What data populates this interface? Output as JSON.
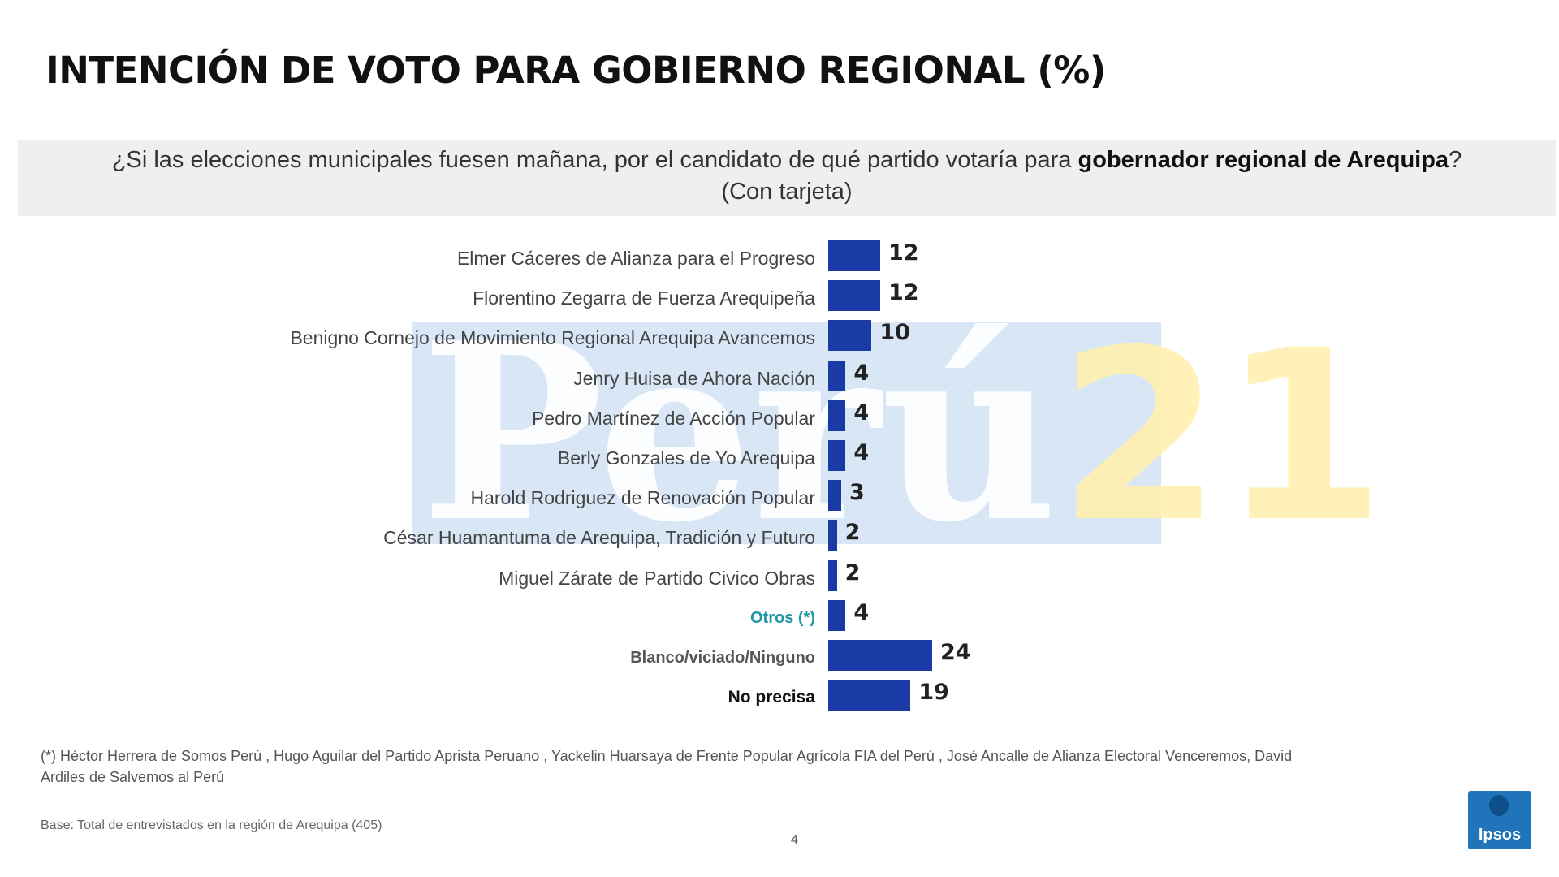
{
  "title": "INTENCIÓN DE VOTO PARA GOBIERNO REGIONAL (%)",
  "question": {
    "pre": "¿Si las elecciones municipales fuesen mañana, por el candidato de qué partido votaría para ",
    "bold": "gobernador regional de Arequipa",
    "post": "?",
    "line2": "(Con tarjeta)"
  },
  "watermark": {
    "text": "Perú",
    "number": "21"
  },
  "chart_data": {
    "type": "bar",
    "orientation": "horizontal",
    "unit": "%",
    "categories": [
      "Elmer Cáceres de Alianza para el Progreso",
      "Florentino Zegarra de Fuerza Arequipeña",
      "Benigno Cornejo de Movimiento Regional Arequipa Avancemos",
      "Jenry Huisa de Ahora Nación",
      "Pedro Martínez de Acción Popular",
      "Berly Gonzales de Yo Arequipa",
      "Harold Rodriguez de Renovación Popular",
      "César Huamantuma de Arequipa, Tradición y Futuro",
      "Miguel Zárate de Partido Civico Obras",
      "Otros (*)",
      "Blanco/viciado/Ninguno",
      "No precisa"
    ],
    "values": [
      12,
      12,
      10,
      4,
      4,
      4,
      3,
      2,
      2,
      4,
      24,
      19
    ],
    "bar_color": "#1a3aa6",
    "xlim": [
      0,
      24
    ],
    "grid": false,
    "legend": "none"
  },
  "footnote": "(*) Héctor Herrera de Somos Perú , Hugo Aguilar del Partido Aprista Peruano , Yackelin Huarsaya de Frente Popular Agrícola FIA del Perú , José Ancalle de Alianza Electoral Venceremos, David Ardiles de Salvemos al Perú",
  "base": "Base: Total de entrevistados en la región de Arequipa (405)",
  "page_number": "4",
  "logo": {
    "text": "Ipsos",
    "color": "#1f74ba"
  }
}
